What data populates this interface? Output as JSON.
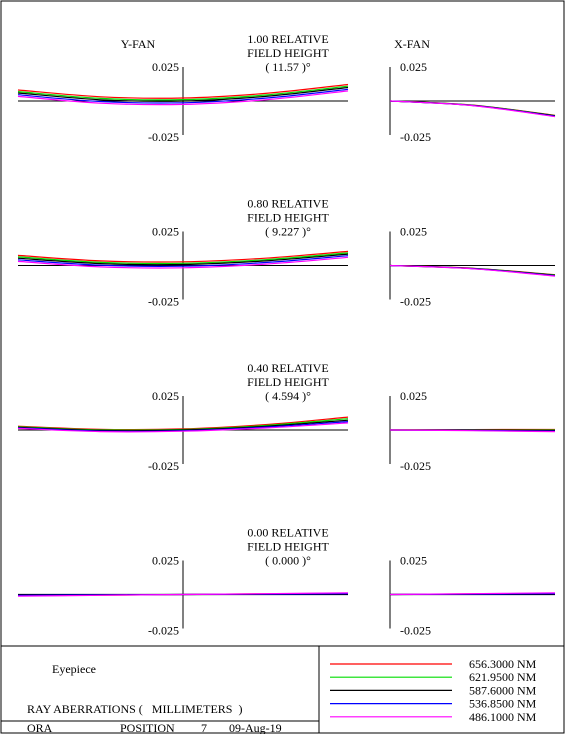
{
  "chart_data": {
    "type": "line",
    "y_fan_title": "Y-FAN",
    "x_fan_title": "X-FAN",
    "tick_max": "0.025",
    "tick_min": "-0.025",
    "ylim": [
      -0.025,
      0.025
    ],
    "xlim": [
      -1,
      1
    ],
    "panels": [
      {
        "rel": "1.00  RELATIVE",
        "field_label": "FIELD HEIGHT",
        "angle": "( 11.57 )°",
        "yfan": [
          {
            "name": "656.3000 NM",
            "x": [
              -1,
              -0.5,
              0,
              0.5,
              1
            ],
            "y": [
              0.0081,
              0.0031,
              0.0022,
              0.0056,
              0.0121
            ]
          },
          {
            "name": "621.9500 NM",
            "x": [
              -1,
              -0.5,
              0,
              0.5,
              1
            ],
            "y": [
              0.0069,
              0.0019,
              0.001,
              0.0044,
              0.0109
            ]
          },
          {
            "name": "587.6000 NM",
            "x": [
              -1,
              -0.5,
              0,
              0.5,
              1
            ],
            "y": [
              0.0059,
              0.0009,
              0.0,
              0.0034,
              0.0099
            ]
          },
          {
            "name": "536.8500 NM",
            "x": [
              -1,
              -0.5,
              0,
              0.5,
              1
            ],
            "y": [
              0.0046,
              -0.0004,
              -0.0013,
              0.0021,
              0.0086
            ]
          },
          {
            "name": "486.1000 NM",
            "x": [
              -1,
              -0.5,
              0,
              0.5,
              1
            ],
            "y": [
              0.0034,
              -0.0016,
              -0.0025,
              0.0009,
              0.0074
            ]
          }
        ],
        "xfan": [
          {
            "name": "656.3000 NM",
            "x": [
              0,
              0.5,
              1
            ],
            "y": [
              0,
              -0.003,
              -0.0105
            ]
          },
          {
            "name": "621.9500 NM",
            "x": [
              0,
              0.5,
              1
            ],
            "y": [
              0,
              -0.0031,
              -0.0107
            ]
          },
          {
            "name": "587.6000 NM",
            "x": [
              0,
              0.5,
              1
            ],
            "y": [
              0,
              -0.0032,
              -0.0109
            ]
          },
          {
            "name": "536.8500 NM",
            "x": [
              0,
              0.5,
              1
            ],
            "y": [
              0,
              -0.0033,
              -0.0112
            ]
          },
          {
            "name": "486.1000 NM",
            "x": [
              0,
              0.5,
              1
            ],
            "y": [
              0,
              -0.0034,
              -0.0115
            ]
          }
        ]
      },
      {
        "rel": "0.80  RELATIVE",
        "field_label": "FIELD HEIGHT",
        "angle": "( 9.227 )°",
        "yfan": [
          {
            "name": "656.3000 NM",
            "x": [
              -1,
              -0.5,
              0,
              0.5,
              1
            ],
            "y": [
              0.0074,
              0.0034,
              0.0027,
              0.0054,
              0.0104
            ]
          },
          {
            "name": "621.9500 NM",
            "x": [
              -1,
              -0.5,
              0,
              0.5,
              1
            ],
            "y": [
              0.0063,
              0.0023,
              0.0016,
              0.0043,
              0.0093
            ]
          },
          {
            "name": "587.6000 NM",
            "x": [
              -1,
              -0.5,
              0,
              0.5,
              1
            ],
            "y": [
              0.0054,
              0.0014,
              0.0007,
              0.0034,
              0.0084
            ]
          },
          {
            "name": "536.8500 NM",
            "x": [
              -1,
              -0.5,
              0,
              0.5,
              1
            ],
            "y": [
              0.0042,
              0.0002,
              -0.0005,
              0.0022,
              0.0072
            ]
          },
          {
            "name": "486.1000 NM",
            "x": [
              -1,
              -0.5,
              0,
              0.5,
              1
            ],
            "y": [
              0.003,
              -0.001,
              -0.0017,
              0.001,
              0.006
            ]
          }
        ],
        "xfan": [
          {
            "name": "656.3000 NM",
            "x": [
              0,
              0.5,
              1
            ],
            "y": [
              0,
              -0.002,
              -0.0068
            ]
          },
          {
            "name": "621.9500 NM",
            "x": [
              0,
              0.5,
              1
            ],
            "y": [
              0,
              -0.0021,
              -0.007
            ]
          },
          {
            "name": "587.6000 NM",
            "x": [
              0,
              0.5,
              1
            ],
            "y": [
              0,
              -0.0022,
              -0.0072
            ]
          },
          {
            "name": "536.8500 NM",
            "x": [
              0,
              0.5,
              1
            ],
            "y": [
              0,
              -0.0023,
              -0.0075
            ]
          },
          {
            "name": "486.1000 NM",
            "x": [
              0,
              0.5,
              1
            ],
            "y": [
              0,
              -0.0024,
              -0.0078
            ]
          }
        ]
      },
      {
        "rel": "0.40  RELATIVE",
        "field_label": "FIELD HEIGHT",
        "angle": "( 4.594 )°",
        "yfan": [
          {
            "name": "656.3000 NM",
            "x": [
              -1,
              -0.5,
              0,
              0.5,
              1
            ],
            "y": [
              0.0028,
              0.0005,
              0.0008,
              0.004,
              0.0095
            ]
          },
          {
            "name": "621.9500 NM",
            "x": [
              -1,
              -0.5,
              0,
              0.5,
              1
            ],
            "y": [
              0.0024,
              0.0001,
              0.0004,
              0.0033,
              0.0083
            ]
          },
          {
            "name": "587.6000 NM",
            "x": [
              -1,
              -0.5,
              0,
              0.5,
              1
            ],
            "y": [
              0.002,
              -0.0003,
              0.0,
              0.0027,
              0.0072
            ]
          },
          {
            "name": "536.8500 NM",
            "x": [
              -1,
              -0.5,
              0,
              0.5,
              1
            ],
            "y": [
              0.0016,
              -0.0008,
              -0.0005,
              0.0021,
              0.0062
            ]
          },
          {
            "name": "486.1000 NM",
            "x": [
              -1,
              -0.5,
              0,
              0.5,
              1
            ],
            "y": [
              0.0012,
              -0.0012,
              -0.0009,
              0.0015,
              0.0052
            ]
          }
        ],
        "xfan": [
          {
            "name": "656.3000 NM",
            "x": [
              0,
              0.5,
              1
            ],
            "y": [
              0,
              0.0003,
              0.0004
            ]
          },
          {
            "name": "621.9500 NM",
            "x": [
              0,
              0.5,
              1
            ],
            "y": [
              0,
              0.0001,
              0.0
            ]
          },
          {
            "name": "587.6000 NM",
            "x": [
              0,
              0.5,
              1
            ],
            "y": [
              0,
              -0.0001,
              -0.0004
            ]
          },
          {
            "name": "536.8500 NM",
            "x": [
              0,
              0.5,
              1
            ],
            "y": [
              0,
              -0.0003,
              -0.0008
            ]
          },
          {
            "name": "486.1000 NM",
            "x": [
              0,
              0.5,
              1
            ],
            "y": [
              0,
              -0.0005,
              -0.0012
            ]
          }
        ]
      },
      {
        "rel": "0.00  RELATIVE",
        "field_label": "FIELD HEIGHT",
        "angle": "( 0.000 )°",
        "yfan": [
          {
            "name": "656.3000 NM",
            "x": [
              -1,
              -0.5,
              0,
              0.5,
              1
            ],
            "y": [
              -0.0008,
              -0.0005,
              0.0,
              0.0005,
              0.0008
            ]
          },
          {
            "name": "621.9500 NM",
            "x": [
              -1,
              -0.5,
              0,
              0.5,
              1
            ],
            "y": [
              -0.0004,
              -0.0002,
              0.0,
              0.0002,
              0.0004
            ]
          },
          {
            "name": "587.6000 NM",
            "x": [
              -1,
              -0.5,
              0,
              0.5,
              1
            ],
            "y": [
              0.0,
              0.0,
              0.0,
              0.0,
              0.0
            ]
          },
          {
            "name": "536.8500 NM",
            "x": [
              -1,
              -0.5,
              0,
              0.5,
              1
            ],
            "y": [
              -0.0006,
              -0.0003,
              0.0,
              0.0003,
              0.0006
            ]
          },
          {
            "name": "486.1000 NM",
            "x": [
              -1,
              -0.5,
              0,
              0.5,
              1
            ],
            "y": [
              -0.0012,
              -0.0006,
              0.0,
              0.0006,
              0.0012
            ]
          }
        ],
        "xfan": [
          {
            "name": "656.3000 NM",
            "x": [
              0,
              0.5,
              1
            ],
            "y": [
              0,
              0.0005,
              0.0008
            ]
          },
          {
            "name": "621.9500 NM",
            "x": [
              0,
              0.5,
              1
            ],
            "y": [
              0,
              0.0002,
              0.0004
            ]
          },
          {
            "name": "587.6000 NM",
            "x": [
              0,
              0.5,
              1
            ],
            "y": [
              0,
              0.0,
              0.0
            ]
          },
          {
            "name": "536.8500 NM",
            "x": [
              0,
              0.5,
              1
            ],
            "y": [
              0,
              0.0003,
              0.0006
            ]
          },
          {
            "name": "486.1000 NM",
            "x": [
              0,
              0.5,
              1
            ],
            "y": [
              0,
              0.0006,
              0.0012
            ]
          }
        ]
      }
    ],
    "legend": [
      {
        "name": "656.3000 NM",
        "color": "#ff0000"
      },
      {
        "name": "621.9500 NM",
        "color": "#00dd00"
      },
      {
        "name": "587.6000 NM",
        "color": "#000000"
      },
      {
        "name": "536.8500 NM",
        "color": "#0000ff"
      },
      {
        "name": "486.1000 NM",
        "color": "#ff00ff"
      }
    ],
    "legend_placement": "bottom-right"
  },
  "footer": {
    "lens_name": "Eyepiece",
    "caption": "RAY ABERRATIONS (   MILLIMETERS  )",
    "company": "ORA",
    "position_label": "POSITION",
    "position_value": "7",
    "date": "09-Aug-19"
  }
}
